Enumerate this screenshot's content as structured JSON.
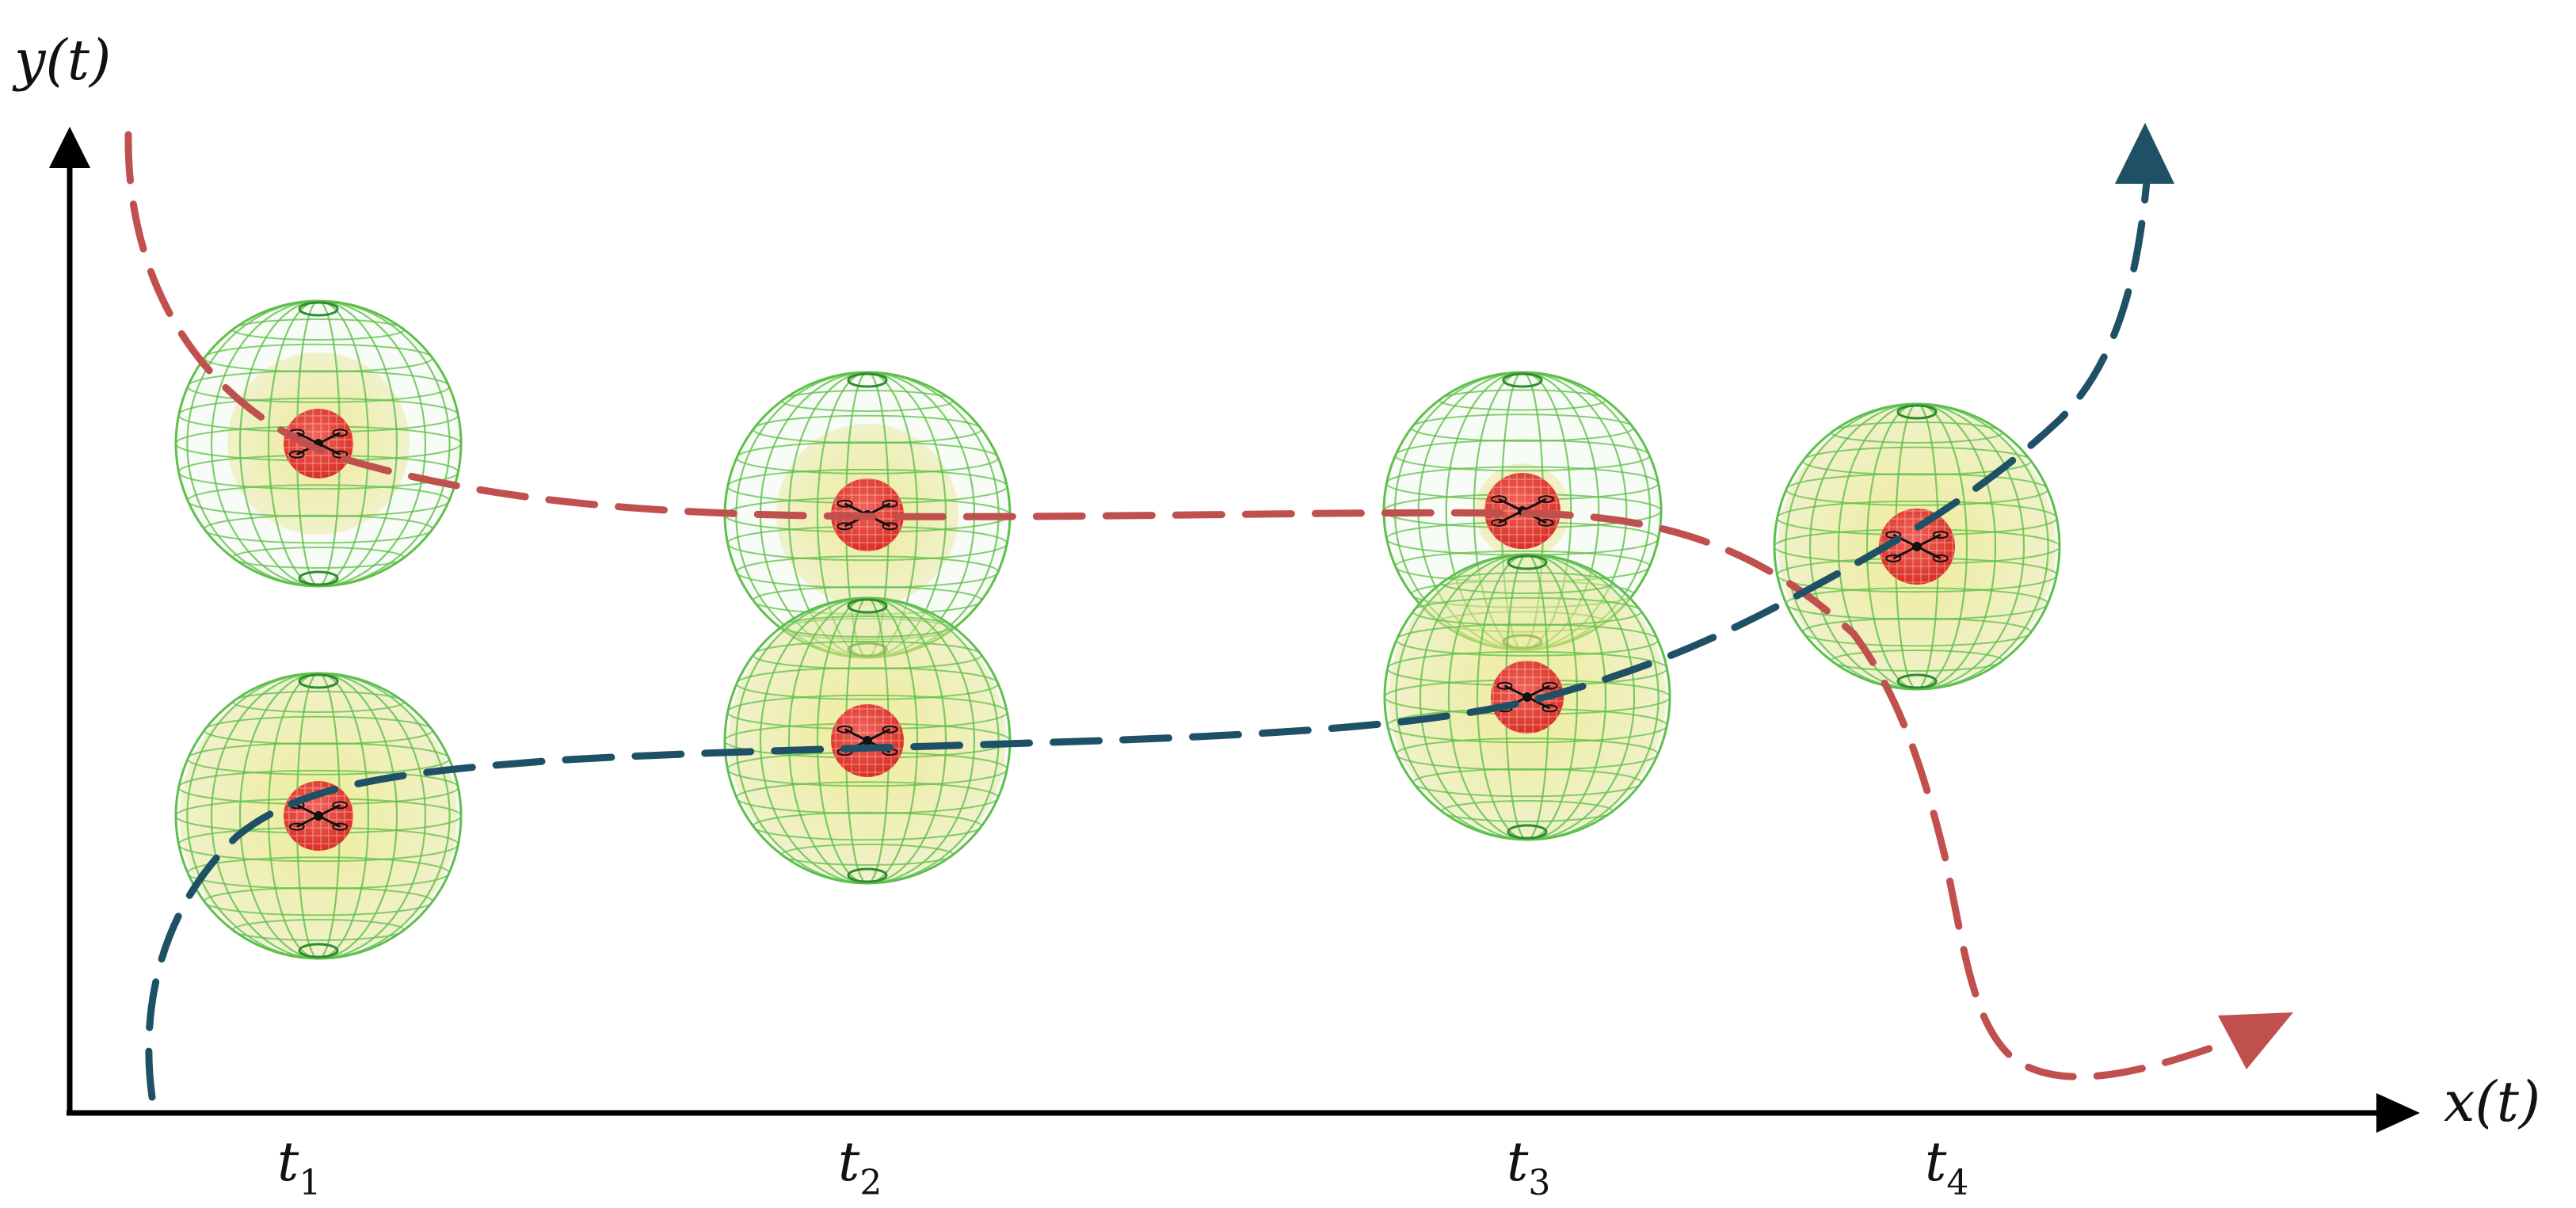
{
  "axes": {
    "x_label": "x(t)",
    "y_label": "y(t)"
  },
  "time_ticks": [
    {
      "base": "t",
      "sub": "1"
    },
    {
      "base": "t",
      "sub": "2"
    },
    {
      "base": "t",
      "sub": "3"
    },
    {
      "base": "t",
      "sub": "4"
    }
  ],
  "colors": {
    "axis": "#000000",
    "red_trajectory": "#C0504D",
    "teal_trajectory": "#1F5166",
    "outer_sphere": "#5FBF4A",
    "inner_sphere": "#D9D24A",
    "core_sphere": "#E53B2E"
  },
  "trajectories": [
    {
      "name": "red-trajectory",
      "color": "#C0504D"
    },
    {
      "name": "teal-trajectory",
      "color": "#1F5166"
    }
  ],
  "icons": [
    "uav-icon",
    "safety-sphere-icon",
    "arrow-head-icon"
  ]
}
